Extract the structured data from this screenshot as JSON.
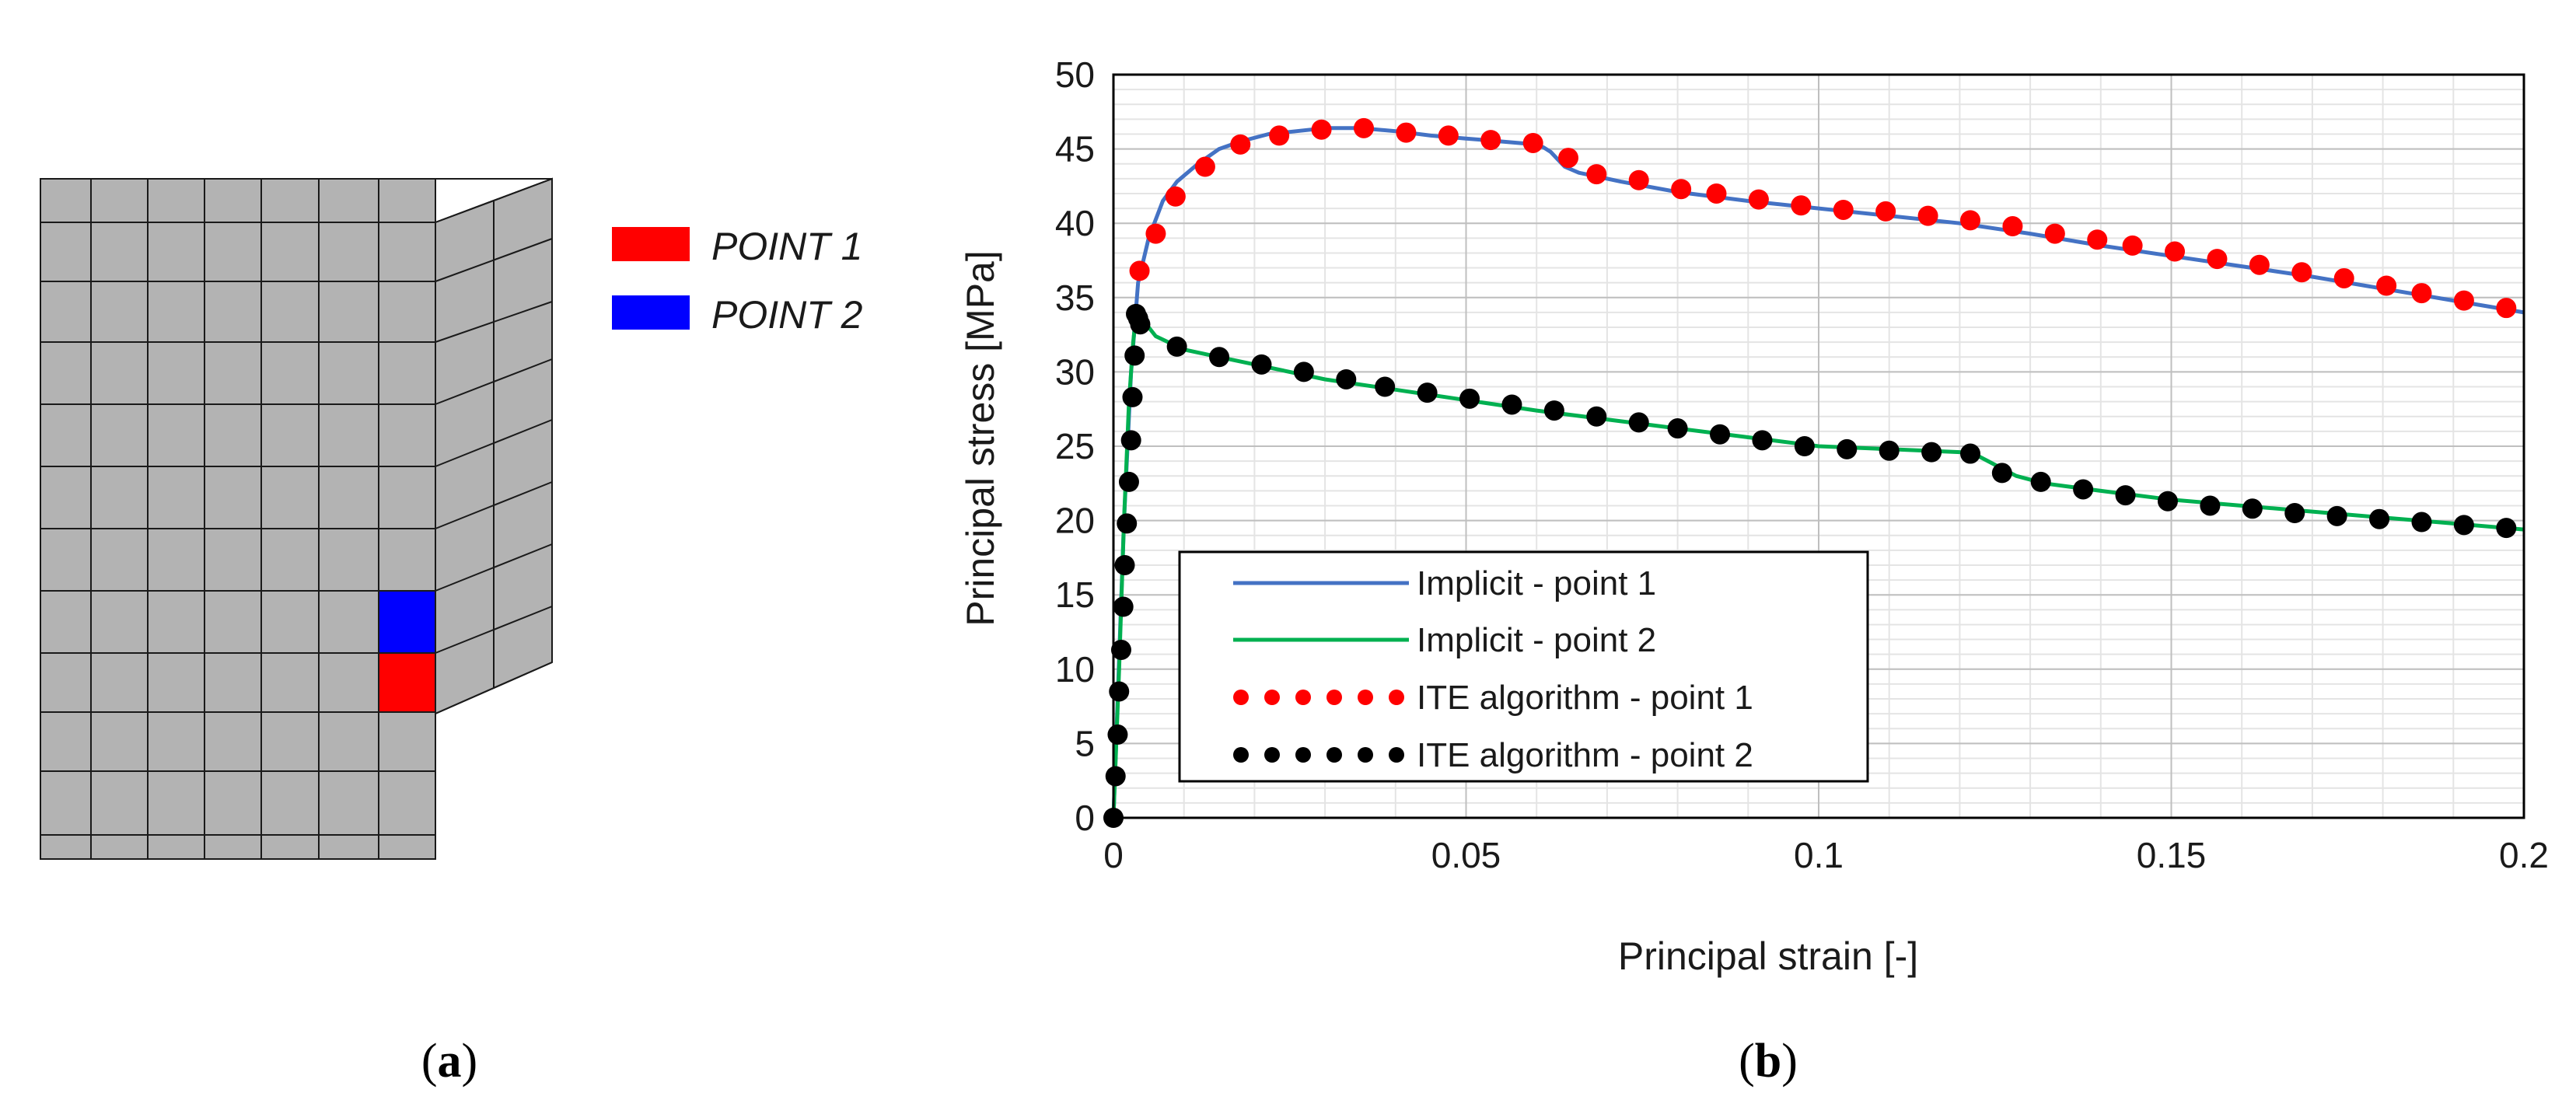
{
  "panels": {
    "a": {
      "label_open": "(",
      "label_letter": "a",
      "label_close": ")"
    },
    "b": {
      "label_open": "(",
      "label_letter": "b",
      "label_close": ")"
    }
  },
  "mesh_legend": {
    "items": [
      {
        "label": "POINT 1",
        "color": "#ff0000"
      },
      {
        "label": "POINT 2",
        "color": "#0000ff"
      }
    ]
  },
  "colors": {
    "mesh_fill": "#b3b3b3",
    "mesh_line": "#1a1a1a",
    "point1": "#ff0000",
    "point2": "#0000ff",
    "implicit1": "#4472c4",
    "implicit2": "#00b050",
    "ite1": "#ff0000",
    "ite2": "#000000"
  },
  "chart_data": {
    "type": "line",
    "title": "",
    "xlabel": "Principal strain [-]",
    "ylabel": "Principal stress [MPa]",
    "xlim": [
      0,
      0.2
    ],
    "ylim": [
      0,
      50
    ],
    "xticks": [
      0,
      0.05,
      0.1,
      0.15,
      0.2
    ],
    "xtick_labels": [
      "0",
      "0.05",
      "0.1",
      "0.15",
      "0.2"
    ],
    "yticks": [
      0,
      5,
      10,
      15,
      20,
      25,
      30,
      35,
      40,
      45,
      50
    ],
    "ytick_labels": [
      "0",
      "5",
      "10",
      "15",
      "20",
      "25",
      "30",
      "35",
      "40",
      "45",
      "50"
    ],
    "grid": true,
    "legend_position": "bottom-left",
    "series": [
      {
        "name": "Implicit - point 1",
        "style": "line",
        "color": "#4472c4",
        "x": [
          0,
          0.0015,
          0.0025,
          0.0035,
          0.005,
          0.007,
          0.009,
          0.012,
          0.015,
          0.018,
          0.022,
          0.026,
          0.03,
          0.035,
          0.04,
          0.045,
          0.05,
          0.055,
          0.06,
          0.061,
          0.062,
          0.063,
          0.064,
          0.066,
          0.068,
          0.072,
          0.08,
          0.09,
          0.1,
          0.11,
          0.12,
          0.13,
          0.14,
          0.15,
          0.16,
          0.17,
          0.18,
          0.19,
          0.2
        ],
        "y": [
          0,
          20,
          30,
          36,
          39,
          41.5,
          42.8,
          44,
          45,
          45.5,
          46,
          46.2,
          46.4,
          46.4,
          46.2,
          45.9,
          45.7,
          45.5,
          45.3,
          45.1,
          44.8,
          44.3,
          43.8,
          43.4,
          43.2,
          42.8,
          42.1,
          41.5,
          41.0,
          40.5,
          40.0,
          39.3,
          38.5,
          37.8,
          37.1,
          36.4,
          35.6,
          34.8,
          34.0
        ]
      },
      {
        "name": "Implicit - point 2",
        "style": "line",
        "color": "#00b050",
        "x": [
          0,
          0.0008,
          0.0015,
          0.0022,
          0.0028,
          0.0032,
          0.0035,
          0.0045,
          0.006,
          0.01,
          0.015,
          0.02,
          0.03,
          0.04,
          0.05,
          0.06,
          0.07,
          0.08,
          0.09,
          0.1,
          0.11,
          0.12,
          0.122,
          0.124,
          0.126,
          0.128,
          0.132,
          0.14,
          0.15,
          0.16,
          0.17,
          0.18,
          0.19,
          0.2
        ],
        "y": [
          0,
          10,
          20,
          28,
          32,
          33.8,
          34.0,
          33.3,
          32.4,
          31.5,
          31.0,
          30.5,
          29.5,
          28.8,
          28.1,
          27.4,
          26.8,
          26.2,
          25.6,
          25.0,
          24.8,
          24.6,
          24.5,
          24.0,
          23.5,
          23.0,
          22.5,
          22.0,
          21.4,
          21.0,
          20.6,
          20.2,
          19.8,
          19.4
        ]
      },
      {
        "name": "ITE algorithm - point 1",
        "style": "dots",
        "color": "#ff0000",
        "x": [
          0.0037,
          0.006,
          0.0088,
          0.013,
          0.018,
          0.0235,
          0.0295,
          0.0355,
          0.0415,
          0.0475,
          0.0535,
          0.0595,
          0.0645,
          0.0685,
          0.0745,
          0.0805,
          0.0855,
          0.0915,
          0.0975,
          0.1035,
          0.1095,
          0.1155,
          0.1215,
          0.1275,
          0.1335,
          0.1395,
          0.1445,
          0.1505,
          0.1565,
          0.1625,
          0.1685,
          0.1745,
          0.1805,
          0.1855,
          0.1915,
          0.1975
        ],
        "y": [
          36.8,
          39.3,
          41.8,
          43.8,
          45.3,
          45.9,
          46.3,
          46.4,
          46.1,
          45.9,
          45.6,
          45.4,
          44.4,
          43.3,
          42.9,
          42.3,
          42.0,
          41.6,
          41.2,
          40.9,
          40.8,
          40.5,
          40.2,
          39.8,
          39.3,
          38.9,
          38.5,
          38.1,
          37.6,
          37.2,
          36.7,
          36.3,
          35.8,
          35.3,
          34.8,
          34.3
        ]
      },
      {
        "name": "ITE algorithm - point 2",
        "style": "dots",
        "color": "#000000",
        "x": [
          0.0,
          0.0003,
          0.0006,
          0.0008,
          0.0011,
          0.0014,
          0.0016,
          0.0019,
          0.0022,
          0.0025,
          0.0027,
          0.003,
          0.0032,
          0.0035,
          0.0038,
          0.009,
          0.015,
          0.021,
          0.027,
          0.033,
          0.0385,
          0.0445,
          0.0505,
          0.0565,
          0.0625,
          0.0685,
          0.0745,
          0.08,
          0.086,
          0.092,
          0.098,
          0.104,
          0.11,
          0.116,
          0.1215,
          0.126,
          0.1315,
          0.1375,
          0.1435,
          0.1495,
          0.1555,
          0.1615,
          0.1675,
          0.1735,
          0.1795,
          0.1855,
          0.1915,
          0.1975
        ],
        "y": [
          0.0,
          2.8,
          5.6,
          8.5,
          11.3,
          14.2,
          17.0,
          19.8,
          22.6,
          25.4,
          28.3,
          31.1,
          33.9,
          33.6,
          33.2,
          31.7,
          31.0,
          30.5,
          30.0,
          29.5,
          29.0,
          28.6,
          28.2,
          27.8,
          27.4,
          27.0,
          26.6,
          26.2,
          25.8,
          25.4,
          25.0,
          24.8,
          24.7,
          24.6,
          24.5,
          23.2,
          22.6,
          22.1,
          21.7,
          21.3,
          21.0,
          20.8,
          20.5,
          20.3,
          20.1,
          19.9,
          19.7,
          19.5
        ]
      }
    ]
  }
}
